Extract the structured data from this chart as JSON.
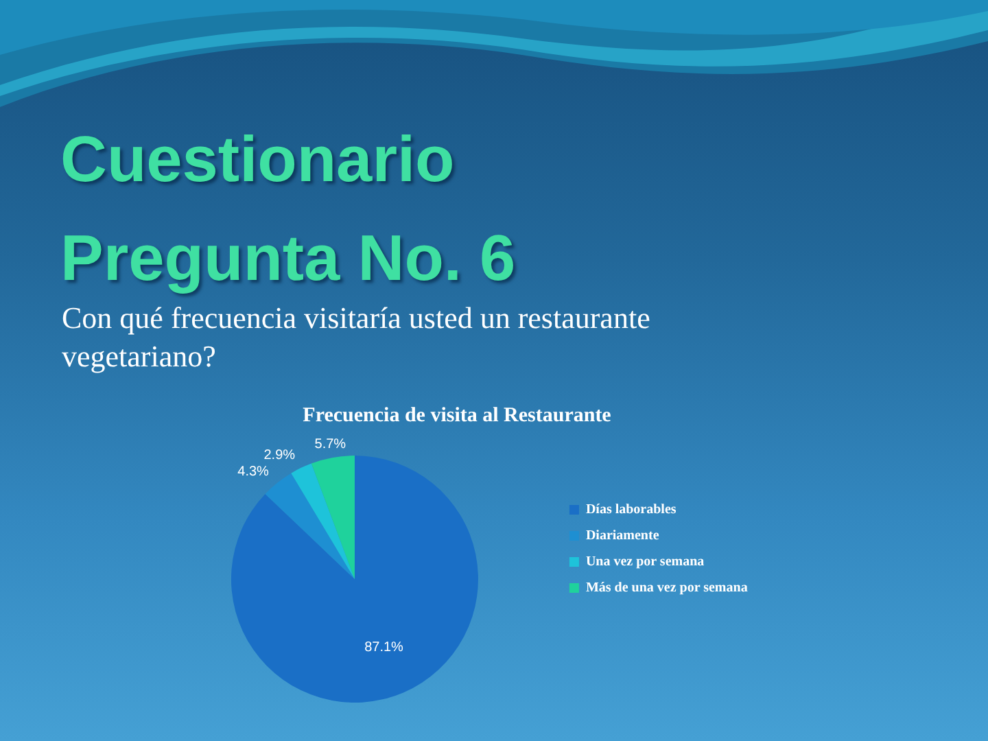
{
  "chart_data": {
    "type": "pie",
    "title": "Frecuencia de visita al Restaurante",
    "subtitle": "Con qué frecuencia visitaría usted un restaurante vegetariano?",
    "annotations": [
      "Cuestionario Pregunta No. 6"
    ],
    "categories": [
      "Días laborables",
      "Diariamente",
      "Una vez por semana",
      "Más de una vez por semana"
    ],
    "values": [
      87.1,
      4.3,
      2.9,
      5.7
    ],
    "colors": [
      "#1a6fc6",
      "#1e8fd2",
      "#1ec3da",
      "#1fd29c"
    ],
    "value_labels": [
      "87.1%",
      "4.3%",
      "2.9%",
      "5.7%"
    ],
    "legend": "right"
  }
}
